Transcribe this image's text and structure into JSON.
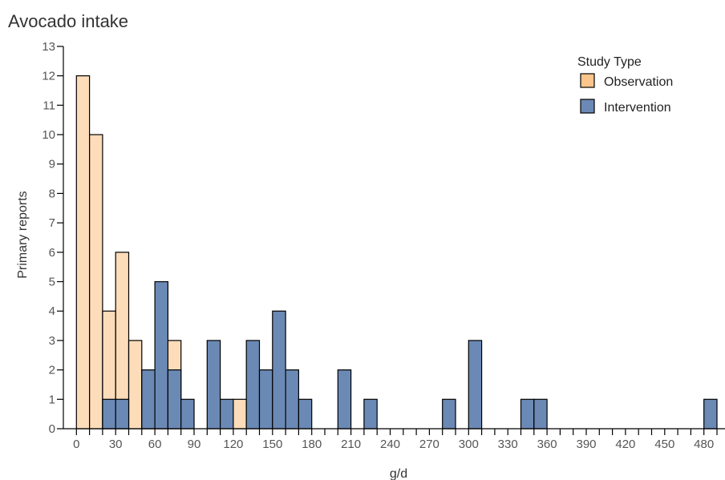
{
  "chart_data": {
    "type": "bar",
    "title": "Avocado intake",
    "xlabel": "g/d",
    "ylabel": "Primary reports",
    "bin_width": 10,
    "xlim": [
      -10,
      500
    ],
    "ylim": [
      0,
      13
    ],
    "x_tick_labels": [
      "0",
      "30",
      "60",
      "90",
      "120",
      "150",
      "180",
      "210",
      "240",
      "270",
      "300",
      "330",
      "360",
      "390",
      "420",
      "450",
      "480"
    ],
    "x_tick_values": [
      0,
      30,
      60,
      90,
      120,
      150,
      180,
      210,
      240,
      270,
      300,
      330,
      360,
      390,
      420,
      450,
      480
    ],
    "y_ticks": [
      "0",
      "1",
      "2",
      "3",
      "4",
      "5",
      "6",
      "7",
      "8",
      "9",
      "10",
      "11",
      "12",
      "13"
    ],
    "legend": {
      "title": "Study Type",
      "position": "top-right"
    },
    "series": [
      {
        "name": "Observation",
        "color": "#fbc58c",
        "bins": [
          {
            "x": 0,
            "value": 12
          },
          {
            "x": 10,
            "value": 10
          },
          {
            "x": 20,
            "value": 4
          },
          {
            "x": 30,
            "value": 6
          },
          {
            "x": 40,
            "value": 3
          },
          {
            "x": 50,
            "value": 2
          },
          {
            "x": 60,
            "value": 3
          },
          {
            "x": 70,
            "value": 3
          },
          {
            "x": 120,
            "value": 1
          }
        ]
      },
      {
        "name": "Intervention",
        "color": "#6b89b5",
        "bins": [
          {
            "x": 20,
            "value": 1
          },
          {
            "x": 30,
            "value": 1
          },
          {
            "x": 50,
            "value": 2
          },
          {
            "x": 60,
            "value": 5
          },
          {
            "x": 70,
            "value": 2
          },
          {
            "x": 80,
            "value": 1
          },
          {
            "x": 100,
            "value": 3
          },
          {
            "x": 110,
            "value": 1
          },
          {
            "x": 130,
            "value": 3
          },
          {
            "x": 140,
            "value": 2
          },
          {
            "x": 150,
            "value": 4
          },
          {
            "x": 160,
            "value": 2
          },
          {
            "x": 170,
            "value": 1
          },
          {
            "x": 200,
            "value": 2
          },
          {
            "x": 220,
            "value": 1
          },
          {
            "x": 280,
            "value": 1
          },
          {
            "x": 300,
            "value": 3
          },
          {
            "x": 340,
            "value": 1
          },
          {
            "x": 350,
            "value": 1
          },
          {
            "x": 480,
            "value": 1
          }
        ]
      }
    ]
  }
}
